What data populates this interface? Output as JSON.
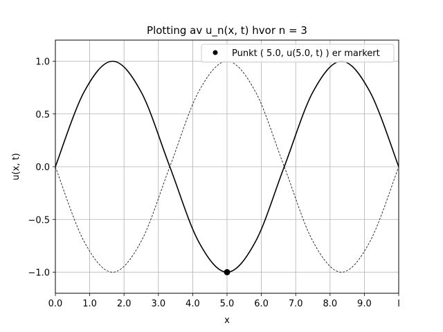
{
  "chart_data": {
    "type": "line",
    "title": "Plotting av u_n(x, t) hvor n = 3",
    "xlabel": "x",
    "ylabel": "u(x, t)",
    "xlim": [
      0,
      10
    ],
    "ylim": [
      -1.2,
      1.2
    ],
    "xtick_values": [
      0,
      1,
      2,
      3,
      4,
      5,
      6,
      7,
      8,
      9,
      10
    ],
    "xtick_labels": [
      "0.0",
      "1.0",
      "2.0",
      "3.0",
      "4.0",
      "5.0",
      "6.0",
      "7.0",
      "8.0",
      "9.0",
      "l"
    ],
    "ytick_values": [
      1.0,
      0.5,
      0.0,
      -0.5,
      -1.0
    ],
    "ytick_labels": [
      "1.0",
      "0.5",
      "0.0",
      "−0.5",
      "−1.0"
    ],
    "grid": true,
    "legend_position": "top-right",
    "series": [
      {
        "style": "solid",
        "color": "#000000",
        "x": [
          0,
          0.8333,
          1.6667,
          2.5,
          3.3333,
          4.1667,
          5.0,
          5.8333,
          6.6667,
          7.5,
          8.3333,
          9.1667,
          10
        ],
        "y": [
          0,
          0.707,
          1.0,
          0.707,
          0,
          -0.707,
          -1.0,
          -0.707,
          0,
          0.707,
          1.0,
          0.707,
          0
        ]
      },
      {
        "style": "dashed",
        "color": "#000000",
        "x": [
          0,
          0.8333,
          1.6667,
          2.5,
          3.3333,
          4.1667,
          5.0,
          5.8333,
          6.6667,
          7.5,
          8.3333,
          9.1667,
          10
        ],
        "y": [
          0,
          -0.707,
          -1.0,
          -0.707,
          0,
          0.707,
          1.0,
          0.707,
          0,
          -0.707,
          -1.0,
          -0.707,
          0
        ]
      }
    ],
    "marker": {
      "name": "Punkt ( 5.0, u(5.0, t) ) er markert",
      "x": 5.0,
      "y": -1.0,
      "color": "#000000"
    }
  }
}
